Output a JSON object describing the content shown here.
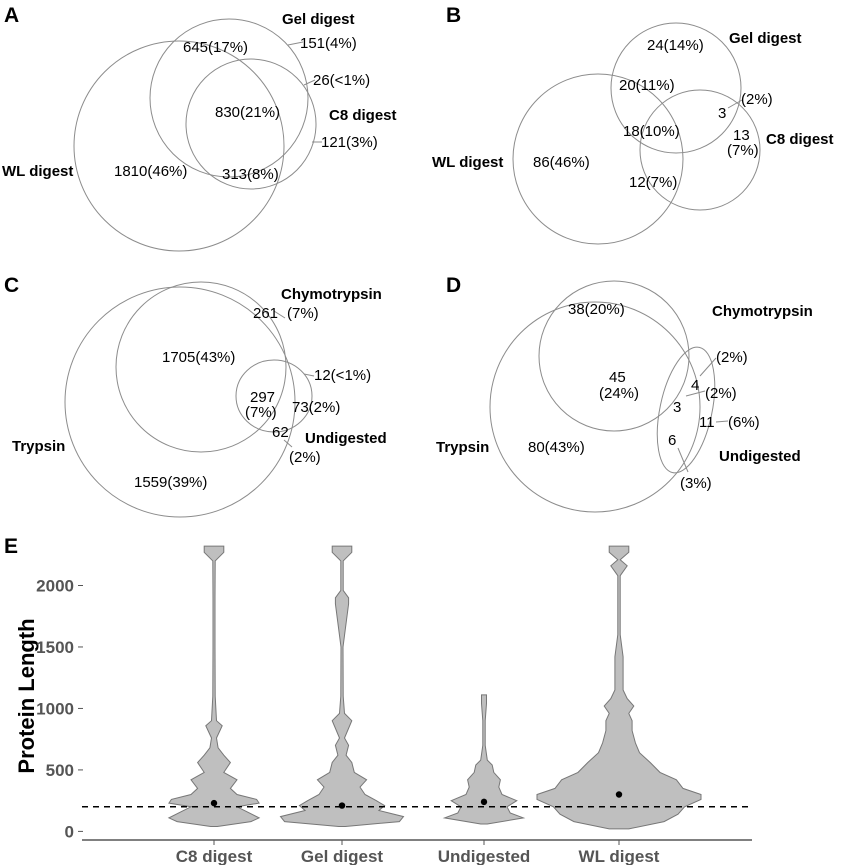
{
  "chart_data": [
    {
      "type": "venn",
      "panel": "A",
      "sets": [
        "WL digest",
        "Gel digest",
        "C8 digest"
      ],
      "regions": [
        {
          "label": "645(17%)",
          "count": 645,
          "pct": "17%"
        },
        {
          "label": "151(4%)",
          "count": 151,
          "pct": "4%"
        },
        {
          "label": "26(<1%)",
          "count": 26,
          "pct": "<1%"
        },
        {
          "label": "830(21%)",
          "count": 830,
          "pct": "21%"
        },
        {
          "label": "121(3%)",
          "count": 121,
          "pct": "3%"
        },
        {
          "label": "1810(46%)",
          "count": 1810,
          "pct": "46%"
        },
        {
          "label": "313(8%)",
          "count": 313,
          "pct": "8%"
        }
      ]
    },
    {
      "type": "venn",
      "panel": "B",
      "sets": [
        "WL digest",
        "Gel digest",
        "C8 digest"
      ],
      "regions": [
        {
          "label": "24(14%)",
          "count": 24,
          "pct": "14%"
        },
        {
          "label": "20(11%)",
          "count": 20,
          "pct": "11%"
        },
        {
          "label": "3",
          "count": 3
        },
        {
          "label": "(2%)",
          "pct": "2%"
        },
        {
          "label": "18(10%)",
          "count": 18,
          "pct": "10%"
        },
        {
          "label": "13",
          "count": 13
        },
        {
          "label": "(7%)",
          "pct": "7%"
        },
        {
          "label": "86(46%)",
          "count": 86,
          "pct": "46%"
        },
        {
          "label": "12(7%)",
          "count": 12,
          "pct": "7%"
        }
      ]
    },
    {
      "type": "venn",
      "panel": "C",
      "sets": [
        "Trypsin",
        "Chymotrypsin",
        "Undigested"
      ],
      "regions": [
        {
          "label": "261",
          "count": 261
        },
        {
          "label": "(7%)",
          "pct": "7%"
        },
        {
          "label": "1705(43%)",
          "count": 1705,
          "pct": "43%"
        },
        {
          "label": "12(<1%)",
          "count": 12,
          "pct": "<1%"
        },
        {
          "label": "297",
          "count": 297
        },
        {
          "label": "(7%)",
          "pct": "7%"
        },
        {
          "label": "73(2%)",
          "count": 73,
          "pct": "2%"
        },
        {
          "label": "62",
          "count": 62
        },
        {
          "label": "(2%)",
          "pct": "2%"
        },
        {
          "label": "1559(39%)",
          "count": 1559,
          "pct": "39%"
        }
      ]
    },
    {
      "type": "venn",
      "panel": "D",
      "sets": [
        "Trypsin",
        "Chymotrypsin",
        "Undigested"
      ],
      "regions": [
        {
          "label": "38(20%)",
          "count": 38,
          "pct": "20%"
        },
        {
          "label": "(2%)",
          "pct": "2%"
        },
        {
          "label": "45",
          "count": 45
        },
        {
          "label": "(24%)",
          "pct": "24%"
        },
        {
          "label": "4",
          "count": 4
        },
        {
          "label": "(2%)",
          "pct": "2%"
        },
        {
          "label": "3",
          "count": 3
        },
        {
          "label": "11",
          "count": 11
        },
        {
          "label": "(6%)",
          "pct": "6%"
        },
        {
          "label": "80(43%)",
          "count": 80,
          "pct": "43%"
        },
        {
          "label": "6",
          "count": 6
        },
        {
          "label": "(3%)",
          "pct": "3%"
        }
      ]
    },
    {
      "type": "violin",
      "panel": "E",
      "categories": [
        "C8 digest",
        "Gel digest",
        "Undigested",
        "WL digest"
      ],
      "ylabel": "Protein Length",
      "xlabel": "",
      "ylim": [
        -70,
        2370
      ],
      "yticks": [
        0,
        500,
        1000,
        1500,
        2000
      ],
      "ytick_labels": [
        "0",
        "500",
        "1000",
        "1500",
        "2000"
      ],
      "reference_line": 200,
      "series": [
        {
          "name": "C8 digest",
          "median": 230,
          "max": 2320,
          "profile": [
            [
              40,
              0.04
            ],
            [
              80,
              0.45
            ],
            [
              110,
              0.55
            ],
            [
              160,
              0.4
            ],
            [
              200,
              0.28
            ],
            [
              230,
              0.55
            ],
            [
              260,
              0.52
            ],
            [
              300,
              0.28
            ],
            [
              350,
              0.2
            ],
            [
              420,
              0.28
            ],
            [
              480,
              0.12
            ],
            [
              560,
              0.2
            ],
            [
              620,
              0.12
            ],
            [
              680,
              0.05
            ],
            [
              760,
              0.03
            ],
            [
              860,
              0.1
            ],
            [
              900,
              0.03
            ],
            [
              1100,
              0.015
            ],
            [
              1500,
              0.012
            ],
            [
              1900,
              0.012
            ],
            [
              2200,
              0.015
            ],
            [
              2270,
              0.12
            ],
            [
              2320,
              0.12
            ]
          ]
        },
        {
          "name": "Gel digest",
          "median": 210,
          "max": 2320,
          "profile": [
            [
              40,
              0.04
            ],
            [
              80,
              0.7
            ],
            [
              120,
              0.75
            ],
            [
              170,
              0.45
            ],
            [
              210,
              0.52
            ],
            [
              250,
              0.42
            ],
            [
              300,
              0.28
            ],
            [
              360,
              0.22
            ],
            [
              420,
              0.3
            ],
            [
              480,
              0.15
            ],
            [
              560,
              0.12
            ],
            [
              620,
              0.05
            ],
            [
              700,
              0.08
            ],
            [
              760,
              0.03
            ],
            [
              900,
              0.12
            ],
            [
              960,
              0.03
            ],
            [
              1100,
              0.015
            ],
            [
              1500,
              0.012
            ],
            [
              1850,
              0.08
            ],
            [
              1900,
              0.08
            ],
            [
              1960,
              0.015
            ],
            [
              2200,
              0.015
            ],
            [
              2270,
              0.12
            ],
            [
              2320,
              0.12
            ]
          ]
        },
        {
          "name": "Undigested",
          "median": 240,
          "max": 1110,
          "profile": [
            [
              60,
              0.04
            ],
            [
              110,
              0.48
            ],
            [
              150,
              0.32
            ],
            [
              200,
              0.28
            ],
            [
              250,
              0.4
            ],
            [
              300,
              0.22
            ],
            [
              360,
              0.18
            ],
            [
              420,
              0.2
            ],
            [
              480,
              0.12
            ],
            [
              540,
              0.1
            ],
            [
              580,
              0.04
            ],
            [
              700,
              0.015
            ],
            [
              900,
              0.015
            ],
            [
              1040,
              0.03
            ],
            [
              1110,
              0.03
            ]
          ]
        },
        {
          "name": "WL digest",
          "median": 300,
          "max": 2320,
          "profile": [
            [
              20,
              0.12
            ],
            [
              80,
              0.55
            ],
            [
              140,
              0.72
            ],
            [
              200,
              0.8
            ],
            [
              260,
              1.0
            ],
            [
              300,
              1.0
            ],
            [
              350,
              0.78
            ],
            [
              420,
              0.7
            ],
            [
              480,
              0.5
            ],
            [
              560,
              0.38
            ],
            [
              640,
              0.25
            ],
            [
              720,
              0.2
            ],
            [
              820,
              0.16
            ],
            [
              900,
              0.16
            ],
            [
              960,
              0.12
            ],
            [
              1020,
              0.18
            ],
            [
              1080,
              0.1
            ],
            [
              1150,
              0.05
            ],
            [
              1300,
              0.05
            ],
            [
              1420,
              0.05
            ],
            [
              1600,
              0.015
            ],
            [
              1900,
              0.015
            ],
            [
              2080,
              0.015
            ],
            [
              2160,
              0.1
            ],
            [
              2210,
              0.015
            ],
            [
              2270,
              0.12
            ],
            [
              2320,
              0.12
            ]
          ]
        }
      ]
    }
  ]
}
